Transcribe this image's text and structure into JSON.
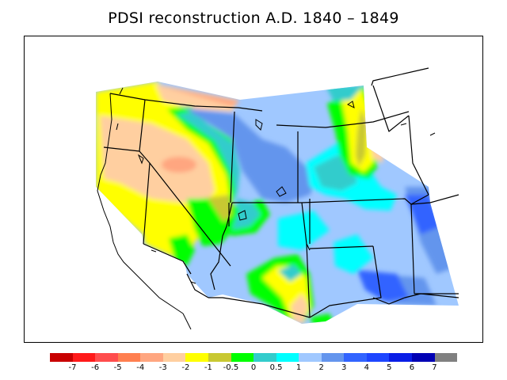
{
  "title": "PDSI reconstruction A.D. 1840 – 1849",
  "map": {
    "variable": "PDSI",
    "region": "western United States",
    "colors": {
      "background": "#ffffff",
      "boundaries": "#000000"
    }
  },
  "legend": {
    "colors": [
      "#c80000",
      "#ff1a1a",
      "#ff4d4d",
      "#ff7f50",
      "#ffa680",
      "#ffcfa0",
      "#ffff00",
      "#c8c832",
      "#00ff00",
      "#33cccc",
      "#00ffff",
      "#a0c8ff",
      "#6495ed",
      "#3264ff",
      "#1e46ff",
      "#0a1ee6",
      "#0000b4",
      "#808080"
    ],
    "labels": [
      "-7",
      "-6",
      "-5",
      "-4",
      "-3",
      "-2",
      "-1",
      "-0.5",
      "0",
      "0.5",
      "1",
      "2",
      "3",
      "4",
      "5",
      "6",
      "7"
    ]
  }
}
